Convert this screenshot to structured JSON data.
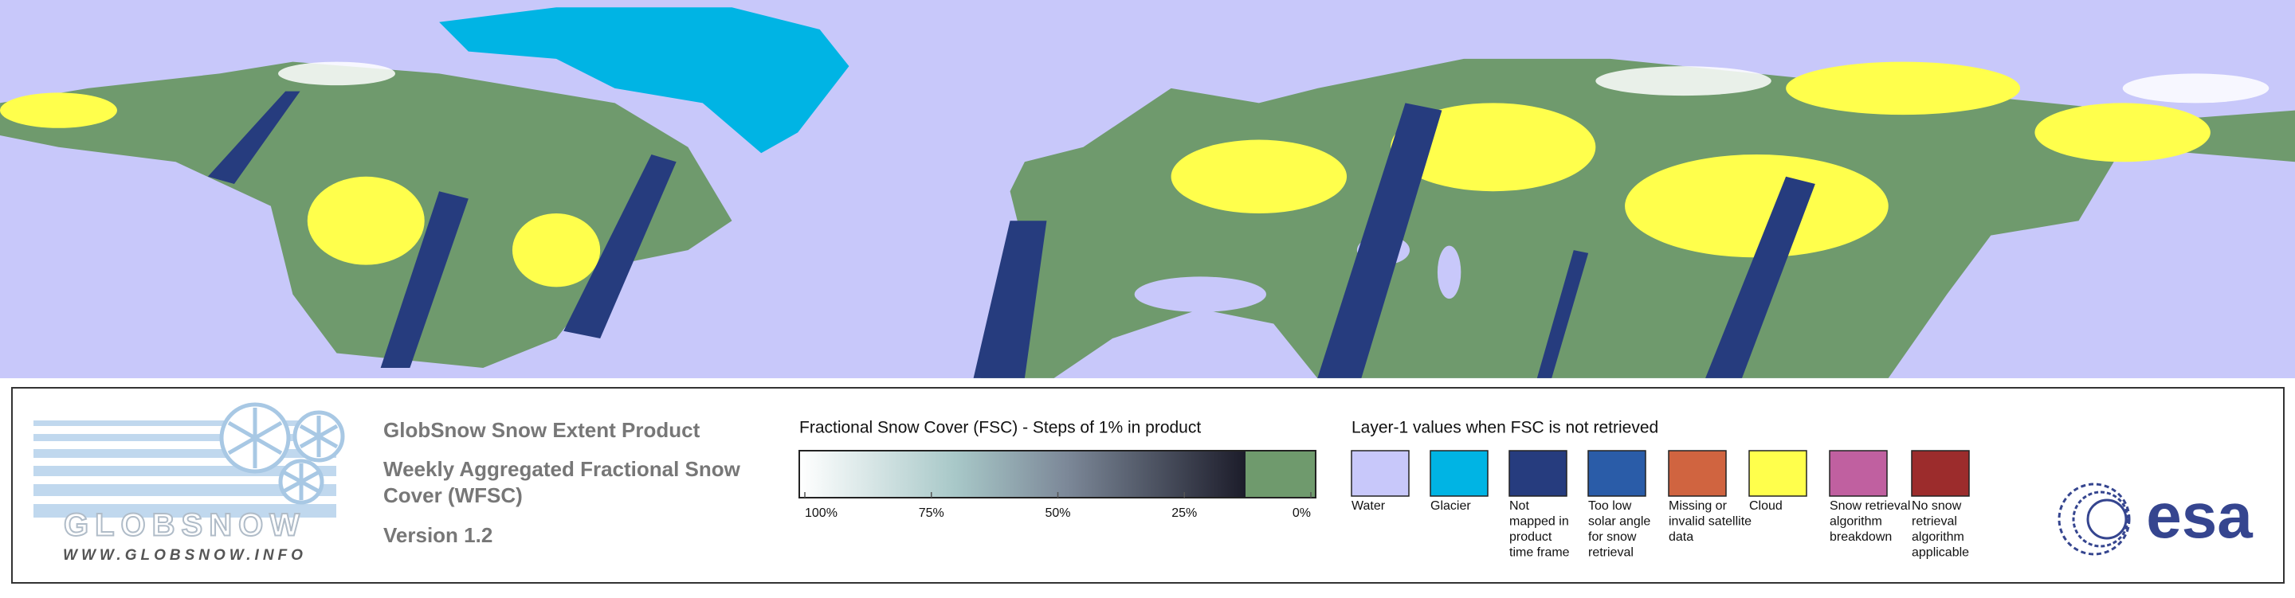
{
  "logo": {
    "name": "GLOBSNOW",
    "url": "WWW.GLOBSNOW.INFO"
  },
  "product": {
    "title": "GlobSnow Snow Extent Product",
    "subtitle_lines": [
      "Weekly Aggregated Fractional Snow",
      "Cover (WFSC)"
    ],
    "version": "Version 1.2"
  },
  "fsc_legend": {
    "title": "Fractional Snow Cover (FSC) - Steps of 1% in product",
    "ticks": [
      "100%",
      "75%",
      "50%",
      "25%",
      "0%"
    ]
  },
  "layer1_legend": {
    "title": "Layer-1 values when FSC is not retrieved",
    "items": [
      {
        "color": "#c8c8fa",
        "label_lines": [
          "Water"
        ]
      },
      {
        "color": "#00b4e4",
        "label_lines": [
          "Glacier"
        ]
      },
      {
        "color": "#263c7e",
        "label_lines": [
          "Not",
          "mapped in",
          "product",
          "time frame"
        ]
      },
      {
        "color": "#2a5ca8",
        "label_lines": [
          "Too low",
          "solar angle",
          "for snow",
          "retrieval"
        ]
      },
      {
        "color": "#d06440",
        "label_lines": [
          "Missing or",
          "invalid satellite",
          "data"
        ]
      },
      {
        "color": "#ffff4c",
        "label_lines": [
          "Cloud"
        ]
      },
      {
        "color": "#c060a0",
        "label_lines": [
          "Snow retrieval",
          "algorithm",
          "breakdown"
        ]
      },
      {
        "color": "#9c2c2c",
        "label_lines": [
          "No snow",
          "retrieval",
          "algorithm",
          "applicable"
        ]
      }
    ]
  },
  "agency_logo": "esa"
}
